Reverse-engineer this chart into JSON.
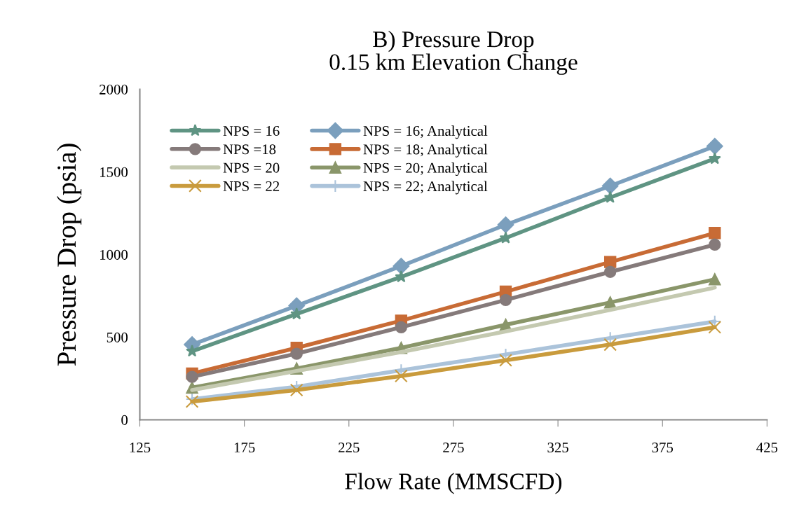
{
  "chart_data": {
    "type": "line",
    "title": "B) Pressure Drop\n0.15 km Elevation Change",
    "xlabel": "Flow Rate (MMSCFD)",
    "ylabel": "Pressure Drop (psia)",
    "x": [
      150,
      200,
      250,
      300,
      350,
      400
    ],
    "xlim": [
      125,
      425
    ],
    "xticks": [
      125,
      175,
      225,
      275,
      325,
      375,
      425
    ],
    "ylim": [
      0,
      2000
    ],
    "yticks": [
      0,
      500,
      1000,
      1500,
      2000
    ],
    "grid": false,
    "legend": "top left",
    "series": [
      {
        "name": "NPS = 16",
        "color": "#5f9483",
        "marker": "star",
        "values": [
          415,
          640,
          865,
          1100,
          1345,
          1580
        ]
      },
      {
        "name": "NPS = 16; Analytical",
        "color": "#7b9fbd",
        "marker": "diamond",
        "values": [
          455,
          690,
          930,
          1180,
          1415,
          1655
        ]
      },
      {
        "name": "NPS =18",
        "color": "#857a7a",
        "marker": "circle",
        "values": [
          260,
          400,
          560,
          725,
          895,
          1060
        ]
      },
      {
        "name": "NPS = 18; Analytical",
        "color": "#c86b35",
        "marker": "square",
        "values": [
          280,
          435,
          600,
          775,
          955,
          1130
        ]
      },
      {
        "name": "NPS = 20",
        "color": "#c4c9b0",
        "marker": "none",
        "values": [
          180,
          295,
          410,
          535,
          665,
          800
        ]
      },
      {
        "name": "NPS = 20; Analytical",
        "color": "#8a966a",
        "marker": "triangle",
        "values": [
          195,
          310,
          435,
          575,
          710,
          850
        ]
      },
      {
        "name": "NPS = 22",
        "color": "#c99b3d",
        "marker": "cross",
        "values": [
          110,
          180,
          265,
          360,
          455,
          560
        ]
      },
      {
        "name": "NPS = 22; Analytical",
        "color": "#abc3da",
        "marker": "plus",
        "values": [
          125,
          200,
          300,
          395,
          495,
          595
        ]
      }
    ]
  }
}
